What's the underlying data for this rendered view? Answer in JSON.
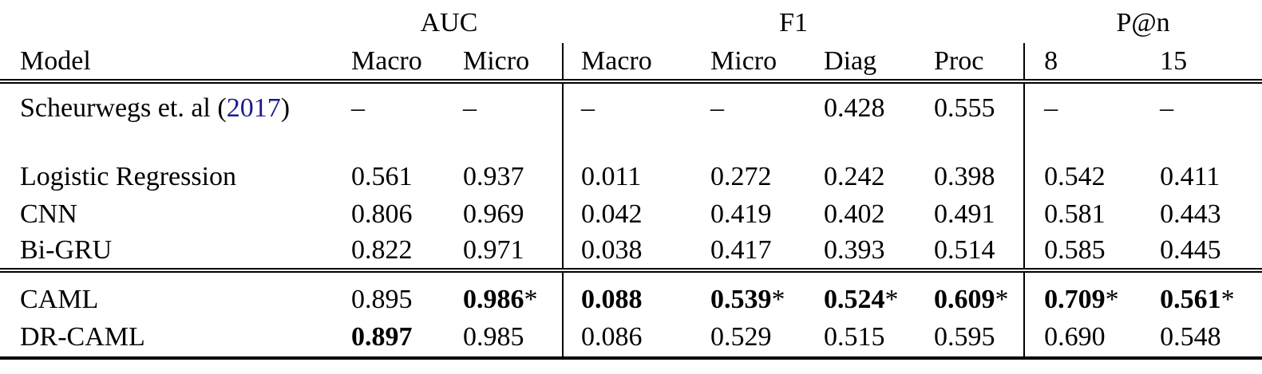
{
  "colors": {
    "text": "#000000",
    "citation_link": "#1a1a8c"
  },
  "table": {
    "groups": {
      "auc": "AUC",
      "f1": "F1",
      "pn": "P@n"
    },
    "column_headers": {
      "model": "Model",
      "auc_macro": "Macro",
      "auc_micro": "Micro",
      "f1_macro": "Macro",
      "f1_micro": "Micro",
      "f1_diag": "Diag",
      "f1_proc": "Proc",
      "p_at_8": "8",
      "p_at_15": "15"
    },
    "rows": [
      {
        "label_pre": "Scheurwegs et. al (",
        "label_link": "2017",
        "label_post": ")",
        "cells": [
          {
            "v": "–"
          },
          {
            "v": "–"
          },
          {
            "v": "–"
          },
          {
            "v": "–"
          },
          {
            "v": "0.428"
          },
          {
            "v": "0.555"
          },
          {
            "v": "–"
          },
          {
            "v": "–"
          }
        ]
      },
      {
        "label": "Logistic Regression",
        "cells": [
          {
            "v": "0.561"
          },
          {
            "v": "0.937"
          },
          {
            "v": "0.011"
          },
          {
            "v": "0.272"
          },
          {
            "v": "0.242"
          },
          {
            "v": "0.398"
          },
          {
            "v": "0.542"
          },
          {
            "v": "0.411"
          }
        ]
      },
      {
        "label": "CNN",
        "cells": [
          {
            "v": "0.806"
          },
          {
            "v": "0.969"
          },
          {
            "v": "0.042"
          },
          {
            "v": "0.419"
          },
          {
            "v": "0.402"
          },
          {
            "v": "0.491"
          },
          {
            "v": "0.581"
          },
          {
            "v": "0.443"
          }
        ]
      },
      {
        "label": "Bi-GRU",
        "cells": [
          {
            "v": "0.822"
          },
          {
            "v": "0.971"
          },
          {
            "v": "0.038"
          },
          {
            "v": "0.417"
          },
          {
            "v": "0.393"
          },
          {
            "v": "0.514"
          },
          {
            "v": "0.585"
          },
          {
            "v": "0.445"
          }
        ]
      },
      {
        "label": "CAML",
        "cells": [
          {
            "v": "0.895"
          },
          {
            "v": "0.986",
            "b": true,
            "s": "*"
          },
          {
            "v": "0.088",
            "b": true
          },
          {
            "v": "0.539",
            "b": true,
            "s": "*"
          },
          {
            "v": "0.524",
            "b": true,
            "s": "*"
          },
          {
            "v": "0.609",
            "b": true,
            "s": "*"
          },
          {
            "v": "0.709",
            "b": true,
            "s": "*"
          },
          {
            "v": "0.561",
            "b": true,
            "s": "*"
          }
        ]
      },
      {
        "label": "DR-CAML",
        "cells": [
          {
            "v": "0.897",
            "b": true
          },
          {
            "v": "0.985"
          },
          {
            "v": "0.086"
          },
          {
            "v": "0.529"
          },
          {
            "v": "0.515"
          },
          {
            "v": "0.595"
          },
          {
            "v": "0.690"
          },
          {
            "v": "0.548"
          }
        ]
      }
    ]
  }
}
